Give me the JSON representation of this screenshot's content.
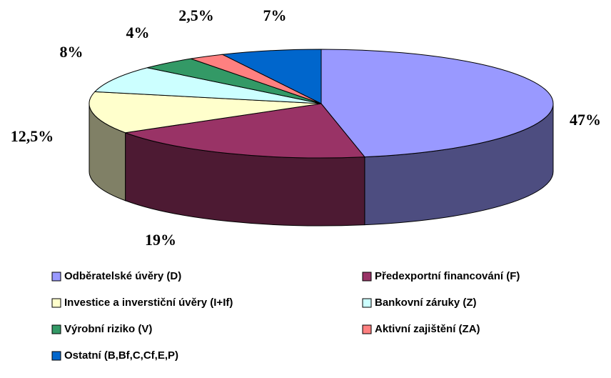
{
  "chart_data": {
    "type": "pie3d",
    "categories": [
      "Odběratelské úvěry (D)",
      "Předexportní financování (F)",
      "Investice a inverstiční úvěry (I+If)",
      "Bankovní záruky (Z)",
      "Výrobní riziko (V)",
      "Aktivní zajištění (ZA)",
      "Ostatní (B,Bf,C,Cf,E,P)"
    ],
    "values": [
      47,
      19,
      12.5,
      8,
      4,
      2.5,
      7
    ],
    "value_labels": [
      "47%",
      "19%",
      "12,5%",
      "8%",
      "4%",
      "2,5%",
      "7%"
    ],
    "colors": [
      "#9999FF",
      "#993366",
      "#FFFFCC",
      "#CCFFFF",
      "#339966",
      "#FF8080",
      "#0066CC"
    ],
    "legend": "bottom"
  }
}
